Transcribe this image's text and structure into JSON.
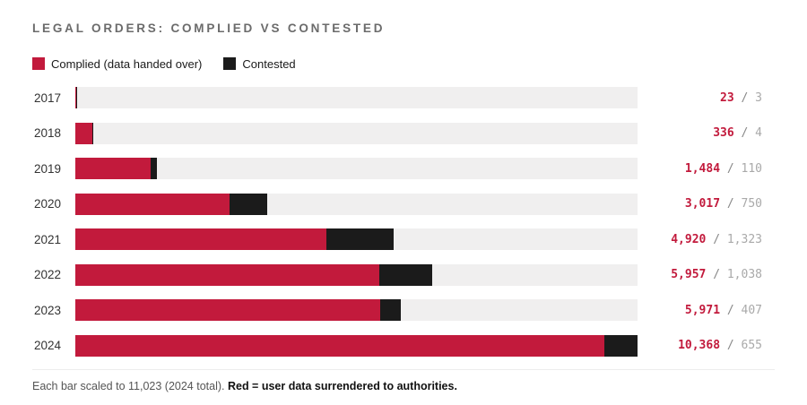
{
  "title": "LEGAL ORDERS: COMPLIED VS CONTESTED",
  "legend": {
    "complied_label": "Complied (data handed over)",
    "contested_label": "Contested"
  },
  "footnote": {
    "plain": "Each bar scaled to 11,023 (2024 total). ",
    "bold": "Red = user data surrendered to authorities."
  },
  "colors": {
    "complied": "#c21a3c",
    "contested": "#1b1b1b",
    "track": "#f0efef"
  },
  "chart_data": {
    "type": "bar",
    "orientation": "horizontal",
    "stacked": true,
    "title": "LEGAL ORDERS: COMPLIED VS CONTESTED",
    "scale_max": 11023,
    "scale_note": "Each bar scaled to 11,023 (2024 total).",
    "categories": [
      "2017",
      "2018",
      "2019",
      "2020",
      "2021",
      "2022",
      "2023",
      "2024"
    ],
    "series": [
      {
        "name": "Complied (data handed over)",
        "color": "#c21a3c",
        "values": [
          23,
          336,
          1484,
          3017,
          4920,
          5957,
          5971,
          10368
        ]
      },
      {
        "name": "Contested",
        "color": "#1b1b1b",
        "values": [
          3,
          4,
          110,
          750,
          1323,
          1038,
          407,
          655
        ]
      }
    ],
    "value_labels": [
      "23 / 3",
      "336 / 4",
      "1,484 / 110",
      "3,017 / 750",
      "4,920 / 1,323",
      "5,957 / 1,038",
      "5,971 / 407",
      "10,368 / 655"
    ],
    "legend_position": "top-left",
    "grid": false
  }
}
